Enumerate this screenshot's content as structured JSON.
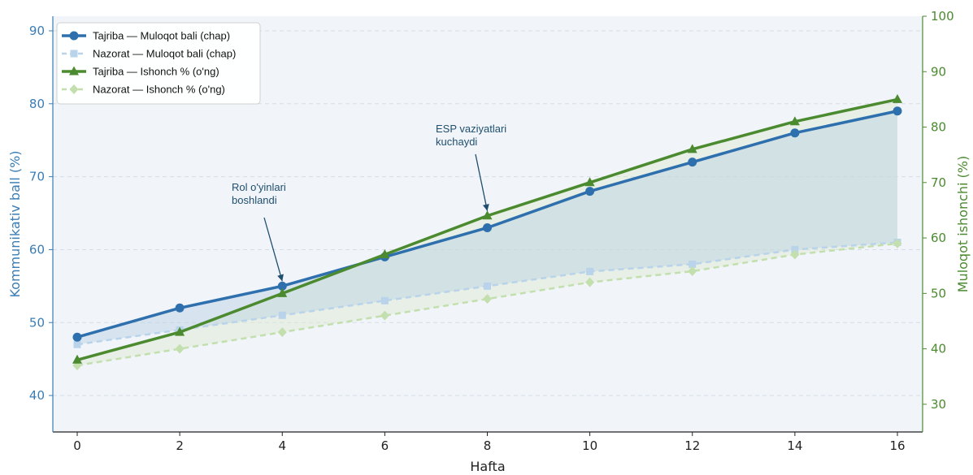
{
  "chart_data": {
    "type": "line",
    "xlabel": "Hafta",
    "ylabel_left": "Kommunikativ ball (%)",
    "ylabel_right": "Muloqot ishonchi (%)",
    "x": [
      0,
      2,
      4,
      6,
      8,
      10,
      12,
      14,
      16
    ],
    "xticks": [
      "0",
      "2",
      "4",
      "6",
      "8",
      "10",
      "12",
      "14",
      "16"
    ],
    "ylim_left": [
      35,
      92
    ],
    "yticks_left": [
      "40",
      "50",
      "60",
      "70",
      "80",
      "90"
    ],
    "ylim_right": [
      25,
      100
    ],
    "yticks_right": [
      "30",
      "40",
      "50",
      "60",
      "70",
      "80",
      "90",
      "100"
    ],
    "grid": "horizontal dashed",
    "legend_position": "top-left",
    "series": [
      {
        "name": "Tajriba — Muloqot bali (chap)",
        "axis": "left",
        "color": "#2e6fad",
        "style": "solid",
        "marker": "circle",
        "values": [
          48,
          52,
          55,
          59,
          63,
          68,
          72,
          76,
          79
        ]
      },
      {
        "name": "Nazorat — Muloqot bali (chap)",
        "axis": "left",
        "color": "#b9d3ea",
        "style": "dashed",
        "marker": "square",
        "values": [
          47,
          49,
          51,
          53,
          55,
          57,
          58,
          60,
          61
        ]
      },
      {
        "name": "Tajriba — Ishonch % (o'ng)",
        "axis": "right",
        "color": "#4b8a2f",
        "style": "solid",
        "marker": "triangle",
        "values": [
          38,
          43,
          50,
          57,
          64,
          70,
          76,
          81,
          85
        ]
      },
      {
        "name": "Nazorat — Ishonch % (o'ng)",
        "axis": "right",
        "color": "#c3dfae",
        "style": "dashed",
        "marker": "diamond",
        "values": [
          37,
          40,
          43,
          46,
          49,
          52,
          54,
          57,
          59
        ]
      }
    ],
    "annotations": [
      {
        "lines": [
          "Rol o'yinlari",
          "boshlandi"
        ],
        "x": 4,
        "y": 55,
        "axis": "left"
      },
      {
        "lines": [
          "ESP vaziyatlari",
          "kuchaydi"
        ],
        "x": 8,
        "y": 64,
        "axis": "right"
      }
    ],
    "colors": {
      "left_axis": "#3a7db5",
      "right_axis": "#4b8a2f",
      "plot_bg": "#f1f5fa",
      "fill_left": "#b9d0e3",
      "fill_right": "#dbe9cf",
      "annotation": "#1f4e6e"
    }
  }
}
